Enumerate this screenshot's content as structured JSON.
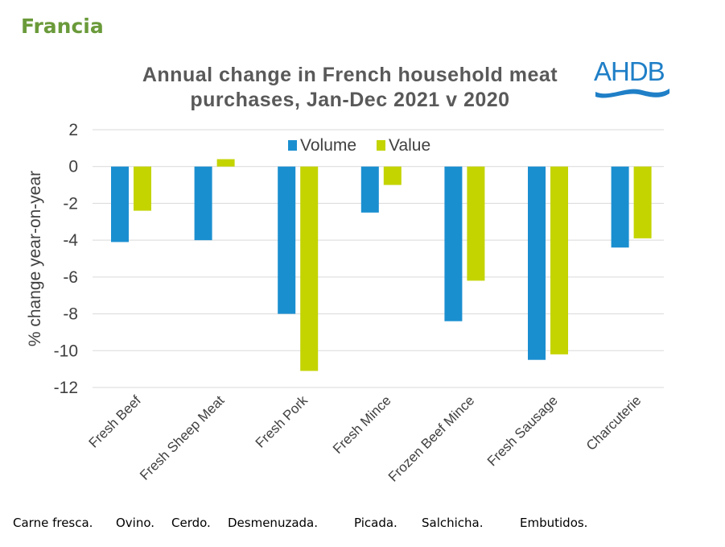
{
  "page": {
    "heading": "Francia"
  },
  "logo": {
    "text": "AHDB"
  },
  "chart_data": {
    "type": "bar",
    "title_lines": [
      "Annual change in French household meat",
      "purchases,  Jan-Dec 2021 v 2020"
    ],
    "ylabel": "% change year-on-year",
    "xlabel": "",
    "ylim": [
      -12,
      2
    ],
    "yticks": [
      2,
      0,
      -2,
      -4,
      -6,
      -8,
      -10,
      -12
    ],
    "grid": true,
    "legend_position": "top",
    "categories": [
      "Fresh Beef",
      "Fresh Sheep Meat",
      "Fresh Pork",
      "Fresh Mince",
      "Frozen Beef Mince",
      "Fresh Sausage",
      "Charcuterie"
    ],
    "series": [
      {
        "name": "Volume",
        "color": "#1a8fd0",
        "values": [
          -4.1,
          -4.0,
          -8.0,
          -2.5,
          -8.4,
          -10.5,
          -4.4
        ]
      },
      {
        "name": "Value",
        "color": "#c3d400",
        "values": [
          -2.4,
          0.4,
          -11.1,
          -1.0,
          -6.2,
          -10.2,
          -3.9
        ]
      }
    ]
  },
  "footer": {
    "translations": [
      "Carne fresca.",
      "Ovino.",
      "Cerdo.",
      "Desmenuzada.",
      "Picada.",
      "Salchicha.",
      "Embutidos."
    ]
  }
}
